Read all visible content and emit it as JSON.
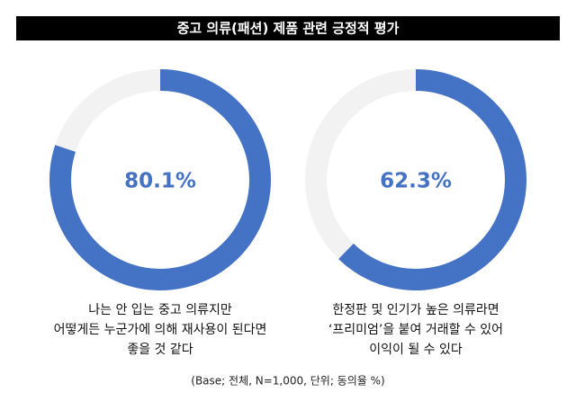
{
  "title": "중고 의류(패션) 제품 관련 긍정적 평가",
  "note": "(Base; 전체, N=1,000, 단위; 동의율 %)",
  "chart_data": [
    {
      "type": "donut",
      "values": [
        80.1
      ],
      "value_labels": [
        "80.1%"
      ],
      "color": "#4472c4",
      "track_color": "#f2f2f2",
      "caption": [
        "나는 안 입는 중고 의류지만",
        "어떻게든 누군가에 의해 재사용이 된다면",
        "좋을 것 같다"
      ]
    },
    {
      "type": "donut",
      "values": [
        62.3
      ],
      "value_labels": [
        "62.3%"
      ],
      "color": "#4472c4",
      "track_color": "#f2f2f2",
      "caption": [
        "한정판 및 인기가 높은 의류라면",
        "‘프리미엄’을 붙여 거래할 수 있어",
        "이익이 될 수 있다"
      ]
    }
  ]
}
